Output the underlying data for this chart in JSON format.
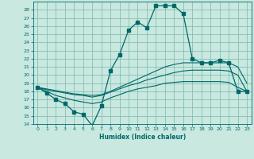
{
  "title": "",
  "xlabel": "Humidex (Indice chaleur)",
  "ylabel": "",
  "bg_color": "#c8e8e0",
  "grid_color": "#7ab8a8",
  "line_color": "#006868",
  "xlim": [
    -0.5,
    23.5
  ],
  "ylim": [
    14,
    29
  ],
  "xticks": [
    0,
    1,
    2,
    3,
    4,
    5,
    6,
    7,
    8,
    9,
    10,
    11,
    12,
    13,
    14,
    15,
    16,
    17,
    18,
    19,
    20,
    21,
    22,
    23
  ],
  "yticks": [
    14,
    15,
    16,
    17,
    18,
    19,
    20,
    21,
    22,
    23,
    24,
    25,
    26,
    27,
    28
  ],
  "series": [
    {
      "x": [
        0,
        1,
        2,
        3,
        4,
        5,
        6,
        7,
        8,
        9,
        10,
        11,
        12,
        13,
        14,
        15,
        16,
        17,
        18,
        19,
        20,
        21,
        22,
        23
      ],
      "y": [
        18.5,
        17.8,
        17.0,
        16.5,
        15.5,
        15.2,
        13.8,
        16.2,
        20.5,
        22.5,
        25.5,
        26.5,
        25.8,
        28.5,
        28.5,
        28.5,
        27.5,
        22.0,
        21.5,
        21.5,
        21.8,
        21.5,
        18.0,
        18.0
      ],
      "marker": true
    },
    {
      "x": [
        0,
        1,
        2,
        3,
        4,
        5,
        6,
        7,
        8,
        9,
        10,
        11,
        12,
        13,
        14,
        15,
        16,
        17,
        18,
        19,
        20,
        21,
        22,
        23
      ],
      "y": [
        18.5,
        18.3,
        18.1,
        17.9,
        17.7,
        17.6,
        17.5,
        17.6,
        18.0,
        18.5,
        19.0,
        19.5,
        20.0,
        20.5,
        21.0,
        21.3,
        21.5,
        21.5,
        21.5,
        21.5,
        21.5,
        21.5,
        21.0,
        19.0
      ],
      "marker": false
    },
    {
      "x": [
        0,
        1,
        2,
        3,
        4,
        5,
        6,
        7,
        8,
        9,
        10,
        11,
        12,
        13,
        14,
        15,
        16,
        17,
        18,
        19,
        20,
        21,
        22,
        23
      ],
      "y": [
        18.5,
        18.2,
        18.0,
        17.8,
        17.6,
        17.5,
        17.3,
        17.5,
        17.9,
        18.3,
        18.7,
        19.0,
        19.4,
        19.7,
        20.0,
        20.3,
        20.5,
        20.6,
        20.6,
        20.6,
        20.6,
        20.5,
        20.0,
        18.0
      ],
      "marker": false
    },
    {
      "x": [
        0,
        1,
        2,
        3,
        4,
        5,
        6,
        7,
        8,
        9,
        10,
        11,
        12,
        13,
        14,
        15,
        16,
        17,
        18,
        19,
        20,
        21,
        22,
        23
      ],
      "y": [
        18.5,
        18.0,
        17.5,
        17.2,
        16.9,
        16.7,
        16.5,
        16.7,
        17.2,
        17.6,
        18.0,
        18.3,
        18.5,
        18.7,
        19.0,
        19.1,
        19.2,
        19.2,
        19.2,
        19.2,
        19.2,
        19.1,
        18.5,
        18.0
      ],
      "marker": false
    }
  ]
}
